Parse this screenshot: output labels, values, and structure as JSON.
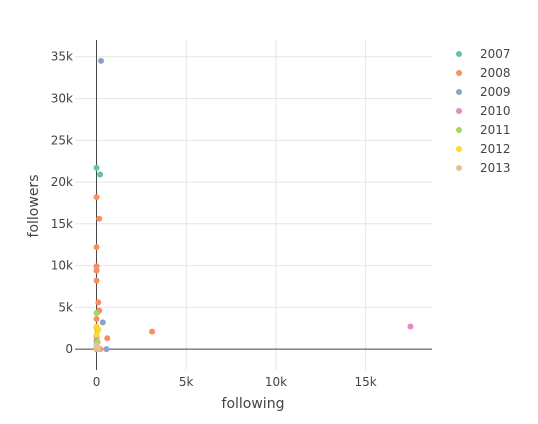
{
  "chart_data": {
    "type": "scatter",
    "xlabel": "following",
    "ylabel": "followers",
    "xlim": [
      -1200,
      18700
    ],
    "ylim": [
      -2500,
      37000
    ],
    "x_ticks": [
      0,
      5000,
      10000,
      15000
    ],
    "x_tick_labels": [
      "0",
      "5k",
      "10k",
      "15k"
    ],
    "y_ticks": [
      0,
      5000,
      10000,
      15000,
      20000,
      25000,
      30000,
      35000
    ],
    "y_tick_labels": [
      "0",
      "5k",
      "10k",
      "15k",
      "20k",
      "25k",
      "30k",
      "35k"
    ],
    "grid": true,
    "zero_lines": true,
    "legend_position": "right",
    "series": [
      {
        "name": "2007",
        "color": "#66c2a5",
        "points": [
          [
            0,
            21700
          ],
          [
            200,
            20900
          ],
          [
            50,
            4400
          ],
          [
            0,
            600
          ]
        ]
      },
      {
        "name": "2008",
        "color": "#fc8d62",
        "points": [
          [
            3100,
            2100
          ],
          [
            600,
            1300
          ],
          [
            150,
            15600
          ],
          [
            0,
            18200
          ],
          [
            0,
            12200
          ],
          [
            0,
            9900
          ],
          [
            0,
            9400
          ],
          [
            0,
            8200
          ],
          [
            100,
            5600
          ],
          [
            150,
            4600
          ],
          [
            0,
            3600
          ],
          [
            0,
            2600
          ],
          [
            0,
            1500
          ],
          [
            50,
            800
          ],
          [
            0,
            200
          ],
          [
            200,
            0
          ],
          [
            0,
            0
          ]
        ]
      },
      {
        "name": "2009",
        "color": "#8da0cb",
        "points": [
          [
            250,
            34500
          ],
          [
            350,
            3200
          ],
          [
            550,
            0
          ],
          [
            0,
            1000
          ],
          [
            0,
            300
          ]
        ]
      },
      {
        "name": "2010",
        "color": "#e78ac3",
        "points": [
          [
            17500,
            2700
          ]
        ]
      },
      {
        "name": "2011",
        "color": "#a6d854",
        "points": [
          [
            0,
            4300
          ],
          [
            50,
            2200
          ],
          [
            50,
            900
          ]
        ]
      },
      {
        "name": "2012",
        "color": "#ffd92f",
        "points": [
          [
            0,
            2700
          ],
          [
            100,
            2400
          ],
          [
            0,
            1700
          ],
          [
            0,
            300
          ]
        ]
      },
      {
        "name": "2013",
        "color": "#e5c494",
        "points": [
          [
            0,
            100
          ],
          [
            0,
            500
          ],
          [
            100,
            0
          ]
        ]
      }
    ]
  }
}
